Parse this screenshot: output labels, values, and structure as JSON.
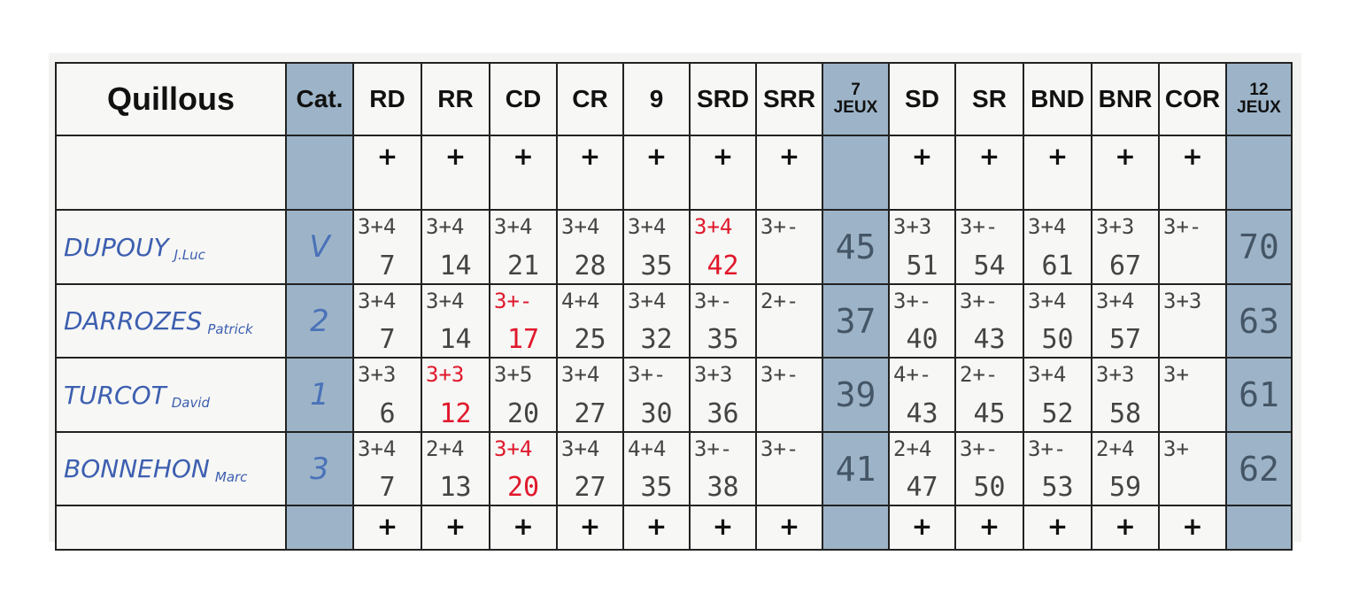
{
  "header": {
    "title": "Quillous",
    "columns": [
      "Cat.",
      "RD",
      "RR",
      "CD",
      "CR",
      "9",
      "SRD",
      "SRR",
      "7 JEUX",
      "SD",
      "SR",
      "BND",
      "BNR",
      "COR",
      "12 JEUX"
    ]
  },
  "plus_rows": [
    [
      "+",
      "+",
      "+",
      "+",
      "+",
      "+",
      "+",
      "+",
      "+",
      "+",
      "+",
      "+"
    ],
    [
      "+",
      "+",
      "+",
      "+",
      "+",
      "+",
      "+",
      "+",
      "+",
      "+",
      "+",
      "+"
    ]
  ],
  "rows": [
    {
      "name": "DUPOUY",
      "first_name": "J.Luc",
      "category": "V",
      "cells": [
        {
          "top": "3+4",
          "bottom": 7
        },
        {
          "top": "3+4",
          "bottom": 14
        },
        {
          "top": "3+4",
          "bottom": 21
        },
        {
          "top": "3+4",
          "bottom": 28
        },
        {
          "top": "3+4",
          "bottom": 35
        },
        {
          "top": "3+4",
          "bottom": 42,
          "red": true
        },
        {
          "top": "3+-"
        },
        {
          "total": 45
        },
        {
          "top": "3+3",
          "bottom": 51
        },
        {
          "top": "3+-",
          "bottom": 54
        },
        {
          "top": "3+4",
          "bottom": 61
        },
        {
          "top": "3+3",
          "bottom": 67
        },
        {
          "top": "3+-"
        },
        {
          "total": 70
        }
      ]
    },
    {
      "name": "DARROZES",
      "first_name": "Patrick",
      "category": "2",
      "cells": [
        {
          "top": "3+4",
          "bottom": 7
        },
        {
          "top": "3+4",
          "bottom": 14
        },
        {
          "top": "3+-",
          "bottom": 17,
          "red": true
        },
        {
          "top": "4+4",
          "bottom": 25
        },
        {
          "top": "3+4",
          "bottom": 32
        },
        {
          "top": "3+-",
          "bottom": 35
        },
        {
          "top": "2+-"
        },
        {
          "total": 37
        },
        {
          "top": "3+-",
          "bottom": 40
        },
        {
          "top": "3+-",
          "bottom": 43
        },
        {
          "top": "3+4",
          "bottom": 50
        },
        {
          "top": "3+4",
          "bottom": 57
        },
        {
          "top": "3+3"
        },
        {
          "total": 63
        }
      ]
    },
    {
      "name": "TURCOT",
      "first_name": "David",
      "category": "1",
      "cells": [
        {
          "top": "3+3",
          "bottom": 6
        },
        {
          "top": "3+3",
          "bottom": 12,
          "red": true
        },
        {
          "top": "3+5",
          "bottom": 20
        },
        {
          "top": "3+4",
          "bottom": 27
        },
        {
          "top": "3+-",
          "bottom": 30
        },
        {
          "top": "3+3",
          "bottom": 36
        },
        {
          "top": "3+-"
        },
        {
          "total": 39
        },
        {
          "top": "4+-",
          "bottom": 43
        },
        {
          "top": "2+-",
          "bottom": 45
        },
        {
          "top": "3+4",
          "bottom": 52
        },
        {
          "top": "3+3",
          "bottom": 58
        },
        {
          "top": "3+"
        },
        {
          "total": 61
        }
      ]
    },
    {
      "name": "BONNEHON",
      "first_name": "Marc",
      "category": "3",
      "cells": [
        {
          "top": "3+4",
          "bottom": 7
        },
        {
          "top": "2+4",
          "bottom": 13
        },
        {
          "top": "3+4",
          "bottom": 20,
          "red": true
        },
        {
          "top": "3+4",
          "bottom": 27
        },
        {
          "top": "4+4",
          "bottom": 35
        },
        {
          "top": "3+-",
          "bottom": 38
        },
        {
          "top": "3+-"
        },
        {
          "total": 41
        },
        {
          "top": "2+4",
          "bottom": 47
        },
        {
          "top": "3+-",
          "bottom": 50
        },
        {
          "top": "3+-",
          "bottom": 53
        },
        {
          "top": "2+4",
          "bottom": 59
        },
        {
          "top": "3+"
        },
        {
          "total": 62
        }
      ]
    }
  ]
}
